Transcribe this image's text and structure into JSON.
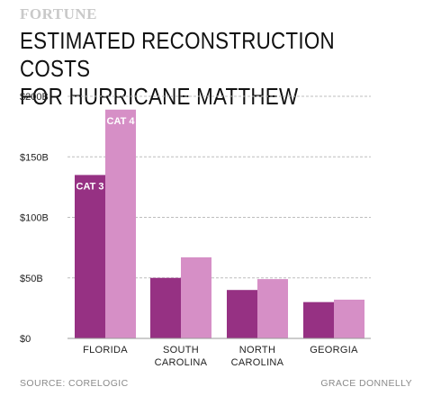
{
  "header": {
    "brand": "FORTUNE",
    "title_line1": "ESTIMATED RECONSTRUCTION COSTS",
    "title_line2": "FOR HURRICANE MATTHEW"
  },
  "footer": {
    "source": "SOURCE: CORELOGIC",
    "credit": "GRACE DONNELLY"
  },
  "colors": {
    "cat3": "#963183",
    "cat4": "#d68fc6",
    "grid": "#bdbdbd",
    "text": "#222222"
  },
  "chart_data": {
    "type": "bar",
    "categories": [
      [
        "FLORIDA"
      ],
      [
        "SOUTH",
        "CAROLINA"
      ],
      [
        "NORTH",
        "CAROLINA"
      ],
      [
        "GEORGIA"
      ]
    ],
    "series": [
      {
        "name": "CAT 3",
        "values": [
          135,
          50,
          40,
          30
        ]
      },
      {
        "name": "CAT 4",
        "values": [
          189,
          67,
          49,
          32
        ]
      }
    ],
    "yticks": [
      0,
      50,
      100,
      150,
      200
    ],
    "ytick_labels": [
      "$0",
      "$50B",
      "$100B",
      "$150B",
      "$200B"
    ],
    "ylim": [
      0,
      200
    ],
    "grid": true,
    "legend": "inline labels on Florida bars"
  }
}
